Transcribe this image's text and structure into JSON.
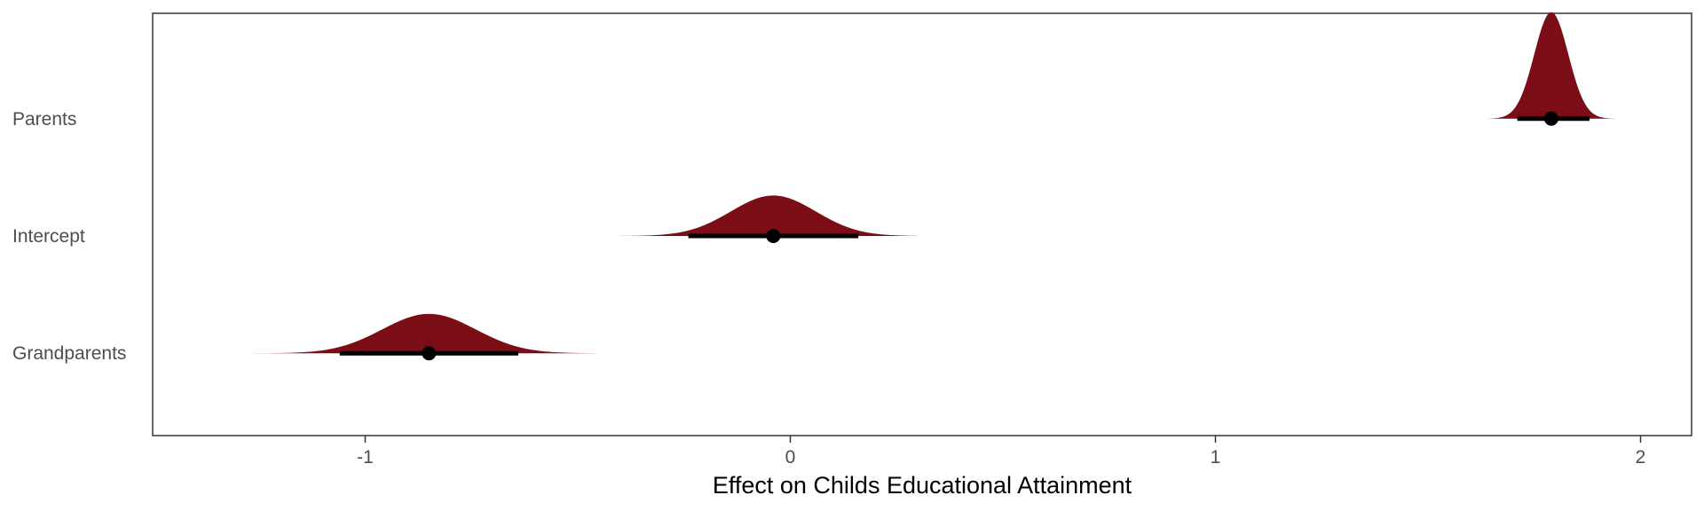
{
  "chart_data": {
    "type": "halfeye",
    "title": "",
    "xlabel": "Effect on Childs Educational Attainment",
    "ylabel": "",
    "xlim": [
      -1.5,
      2.12
    ],
    "x_ticks": [
      -1,
      0,
      1,
      2
    ],
    "x_tick_labels": [
      "-1",
      "0",
      "1",
      "2"
    ],
    "categories": [
      "Parents",
      "Intercept",
      "Grandparents"
    ],
    "grid": false,
    "legend": "none",
    "fill_color": "#7b0d16",
    "interval_color": "#000000",
    "series": [
      {
        "category": "Parents",
        "median": 1.79,
        "interval": [
          1.71,
          1.88
        ],
        "density_range": [
          1.6,
          1.98
        ],
        "spread": 0.04,
        "height": 1.0
      },
      {
        "category": "Intercept",
        "median": -0.04,
        "interval": [
          -0.24,
          0.16
        ],
        "density_range": [
          -0.4,
          0.3
        ],
        "spread": 0.1,
        "height": 0.38
      },
      {
        "category": "Grandparents",
        "median": -0.85,
        "interval": [
          -1.06,
          -0.64
        ],
        "density_range": [
          -1.35,
          -0.46
        ],
        "spread": 0.11,
        "height": 0.37
      }
    ]
  }
}
